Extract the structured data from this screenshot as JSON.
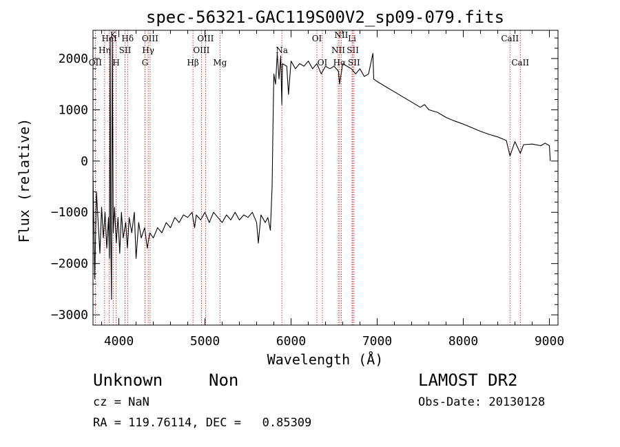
{
  "chart_data": {
    "type": "line",
    "title": "spec-56321-GAC119S00V2_sp09-079.fits",
    "xlabel": "Wavelength (Å)",
    "ylabel": "Flux (relative)",
    "xlim": [
      3700,
      9100
    ],
    "ylim": [
      -3200,
      2550
    ],
    "x_ticks": [
      4000,
      5000,
      6000,
      7000,
      8000,
      9000
    ],
    "x_tick_labels": [
      "4000",
      "5000",
      "6000",
      "7000",
      "8000",
      "9000"
    ],
    "y_ticks": [
      -3000,
      -2000,
      -1000,
      0,
      1000,
      2000
    ],
    "y_tick_labels": [
      "−3000",
      "−2000",
      "−1000",
      "0",
      "1000",
      "2000"
    ],
    "grid": false,
    "series": [
      {
        "color": "#000000",
        "points": [
          [
            3700,
            -300
          ],
          [
            3720,
            -2300
          ],
          [
            3740,
            -600
          ],
          [
            3760,
            -1200
          ],
          [
            3780,
            -1800
          ],
          [
            3800,
            -900
          ],
          [
            3820,
            -1500
          ],
          [
            3840,
            -1000
          ],
          [
            3860,
            -1700
          ],
          [
            3880,
            -1100
          ],
          [
            3890,
            -1900
          ],
          [
            3900,
            2400
          ],
          [
            3905,
            -1300
          ],
          [
            3915,
            -2700
          ],
          [
            3925,
            2400
          ],
          [
            3935,
            -1400
          ],
          [
            3950,
            -900
          ],
          [
            3970,
            -1600
          ],
          [
            3990,
            -1100
          ],
          [
            4010,
            -1800
          ],
          [
            4030,
            -1000
          ],
          [
            4050,
            -1500
          ],
          [
            4080,
            -1200
          ],
          [
            4100,
            -1700
          ],
          [
            4120,
            -1100
          ],
          [
            4150,
            -1400
          ],
          [
            4180,
            -1000
          ],
          [
            4200,
            -1900
          ],
          [
            4230,
            -1200
          ],
          [
            4260,
            -1500
          ],
          [
            4300,
            -1300
          ],
          [
            4330,
            -1700
          ],
          [
            4360,
            -1400
          ],
          [
            4400,
            -1500
          ],
          [
            4450,
            -1300
          ],
          [
            4500,
            -1400
          ],
          [
            4550,
            -1200
          ],
          [
            4600,
            -1300
          ],
          [
            4650,
            -1100
          ],
          [
            4700,
            -1200
          ],
          [
            4750,
            -1050
          ],
          [
            4800,
            -1100
          ],
          [
            4850,
            -1000
          ],
          [
            4880,
            -1300
          ],
          [
            4900,
            -1050
          ],
          [
            4950,
            -1150
          ],
          [
            5000,
            -1000
          ],
          [
            5050,
            -1200
          ],
          [
            5100,
            -1000
          ],
          [
            5150,
            -1100
          ],
          [
            5200,
            -1200
          ],
          [
            5250,
            -1050
          ],
          [
            5300,
            -1150
          ],
          [
            5350,
            -1000
          ],
          [
            5400,
            -1150
          ],
          [
            5450,
            -1050
          ],
          [
            5500,
            -1100
          ],
          [
            5550,
            -1000
          ],
          [
            5600,
            -1200
          ],
          [
            5620,
            -1600
          ],
          [
            5650,
            -1050
          ],
          [
            5700,
            -1200
          ],
          [
            5730,
            -1100
          ],
          [
            5760,
            -1350
          ],
          [
            5780,
            -500
          ],
          [
            5790,
            700
          ],
          [
            5800,
            1700
          ],
          [
            5820,
            1500
          ],
          [
            5840,
            2100
          ],
          [
            5860,
            1600
          ],
          [
            5880,
            2050
          ],
          [
            5893,
            1100
          ],
          [
            5900,
            1900
          ],
          [
            5950,
            1850
          ],
          [
            5970,
            1300
          ],
          [
            6000,
            1950
          ],
          [
            6050,
            1800
          ],
          [
            6100,
            1900
          ],
          [
            6150,
            1850
          ],
          [
            6200,
            1950
          ],
          [
            6250,
            1800
          ],
          [
            6300,
            1900
          ],
          [
            6350,
            1700
          ],
          [
            6400,
            1850
          ],
          [
            6450,
            1800
          ],
          [
            6500,
            1850
          ],
          [
            6550,
            1750
          ],
          [
            6563,
            1500
          ],
          [
            6600,
            1900
          ],
          [
            6650,
            1850
          ],
          [
            6700,
            1800
          ],
          [
            6750,
            1700
          ],
          [
            6800,
            1800
          ],
          [
            6850,
            1650
          ],
          [
            6900,
            1700
          ],
          [
            6950,
            2100
          ],
          [
            6960,
            1600
          ],
          [
            7000,
            1550
          ],
          [
            7100,
            1450
          ],
          [
            7200,
            1350
          ],
          [
            7300,
            1250
          ],
          [
            7400,
            1150
          ],
          [
            7500,
            1050
          ],
          [
            7550,
            1100
          ],
          [
            7600,
            1000
          ],
          [
            7700,
            950
          ],
          [
            7800,
            850
          ],
          [
            7900,
            780
          ],
          [
            8000,
            720
          ],
          [
            8100,
            650
          ],
          [
            8200,
            580
          ],
          [
            8300,
            520
          ],
          [
            8400,
            470
          ],
          [
            8500,
            400
          ],
          [
            8542,
            100
          ],
          [
            8600,
            380
          ],
          [
            8662,
            150
          ],
          [
            8700,
            320
          ],
          [
            8800,
            330
          ],
          [
            8900,
            300
          ],
          [
            8950,
            350
          ],
          [
            9000,
            300
          ],
          [
            9010,
            0
          ]
        ]
      }
    ],
    "lines": [
      {
        "label": "OII",
        "x": 3727,
        "row": 3
      },
      {
        "label": "Hη",
        "x": 3835,
        "row": 2
      },
      {
        "label": "HeI",
        "x": 3889,
        "row": 1
      },
      {
        "label": "K",
        "x": 3934,
        "row": 0
      },
      {
        "label": "H",
        "x": 3969,
        "row": 3
      },
      {
        "label": "Hδ",
        "x": 4102,
        "row": 1
      },
      {
        "label": "SII",
        "x": 4072,
        "row": 2
      },
      {
        "label": "OIII",
        "x": 4363,
        "row": 1
      },
      {
        "label": "Hγ",
        "x": 4341,
        "row": 2
      },
      {
        "label": "G",
        "x": 4304,
        "row": 3
      },
      {
        "label": "Hβ",
        "x": 4861,
        "row": 3
      },
      {
        "label": "OIII",
        "x": 4959,
        "row": 2
      },
      {
        "label": "OIII",
        "x": 5007,
        "row": 1
      },
      {
        "label": "Mg",
        "x": 5175,
        "row": 3
      },
      {
        "label": "Na",
        "x": 5893,
        "row": 2
      },
      {
        "label": "OI",
        "x": 6300,
        "row": 1
      },
      {
        "label": "OI",
        "x": 6364,
        "row": 3
      },
      {
        "label": "NII",
        "x": 6548,
        "row": 2
      },
      {
        "label": "Hα",
        "x": 6563,
        "row": 3
      },
      {
        "label": "NII",
        "x": 6583,
        "row": 0
      },
      {
        "label": "Li",
        "x": 6708,
        "row": 1
      },
      {
        "label": "SII",
        "x": 6717,
        "row": 2
      },
      {
        "label": "SII",
        "x": 6731,
        "row": 3
      },
      {
        "label": "CaII",
        "x": 8542,
        "row": 1
      },
      {
        "label": "CaII",
        "x": 8662,
        "row": 3
      }
    ]
  },
  "footer": {
    "class_label": "Unknown",
    "subclass_label": "Non",
    "survey": "LAMOST DR2",
    "cz": "cz = NaN",
    "obs_date": "Obs-Date: 20130128",
    "coords": "RA = 119.76114, DEC =   0.85309"
  },
  "colors": {
    "spectrum": "#000000",
    "line_markers": "#cc0000"
  }
}
